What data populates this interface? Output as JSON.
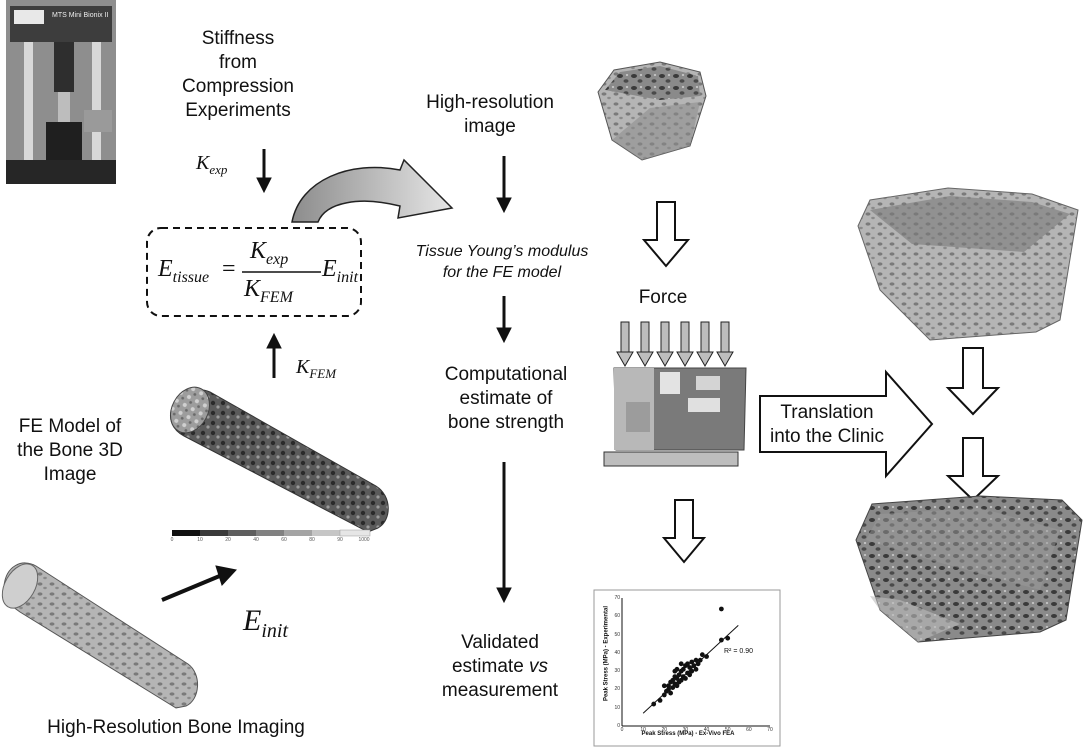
{
  "labels": {
    "stiffness": [
      "Stiffness",
      "from",
      "Compression",
      "Experiments"
    ],
    "high_res_image": [
      "High-resolution",
      "image"
    ],
    "tissue_modulus": [
      "Tissue Young’s modulus",
      "for the FE model"
    ],
    "force": "Force",
    "computational": [
      "Computational",
      "estimate of",
      "bone strength"
    ],
    "fe_model": [
      "FE Model of",
      "the Bone 3D",
      "Image"
    ],
    "validated": [
      "Validated",
      "estimate vs",
      "measurement"
    ],
    "translation": [
      "Translation",
      "into the Clinic"
    ],
    "hr_bone_imaging": "High-Resolution Bone Imaging"
  },
  "math": {
    "k_exp": {
      "base": "K",
      "sub": "exp"
    },
    "k_fem": {
      "base": "K",
      "sub": "FEM"
    },
    "e_init": {
      "base": "E",
      "sub": "init"
    },
    "equation": {
      "lhs": "E",
      "lhs_sub": "tissue",
      "eq": "=",
      "num": "K",
      "num_sub": "exp",
      "den": "K",
      "den_sub": "FEM",
      "rhs": "E",
      "rhs_sub": "init"
    }
  },
  "scatter": {
    "xlabel": "Peak Stress (MPa) - Ex-Vivo FEA",
    "ylabel": "Peak Stress (MPa) - Experimental",
    "r2": "R² = 0.90",
    "xticks": [
      "0",
      "10",
      "20",
      "30",
      "40",
      "50",
      "60",
      "70"
    ],
    "yticks": [
      "0",
      "10",
      "20",
      "30",
      "40",
      "50",
      "60",
      "70"
    ]
  },
  "colorbar_ticks": [
    "0",
    "10",
    "20",
    "40",
    "60",
    "80",
    "90",
    "1000"
  ],
  "machine_label": "MTS Mini Bionix II"
}
